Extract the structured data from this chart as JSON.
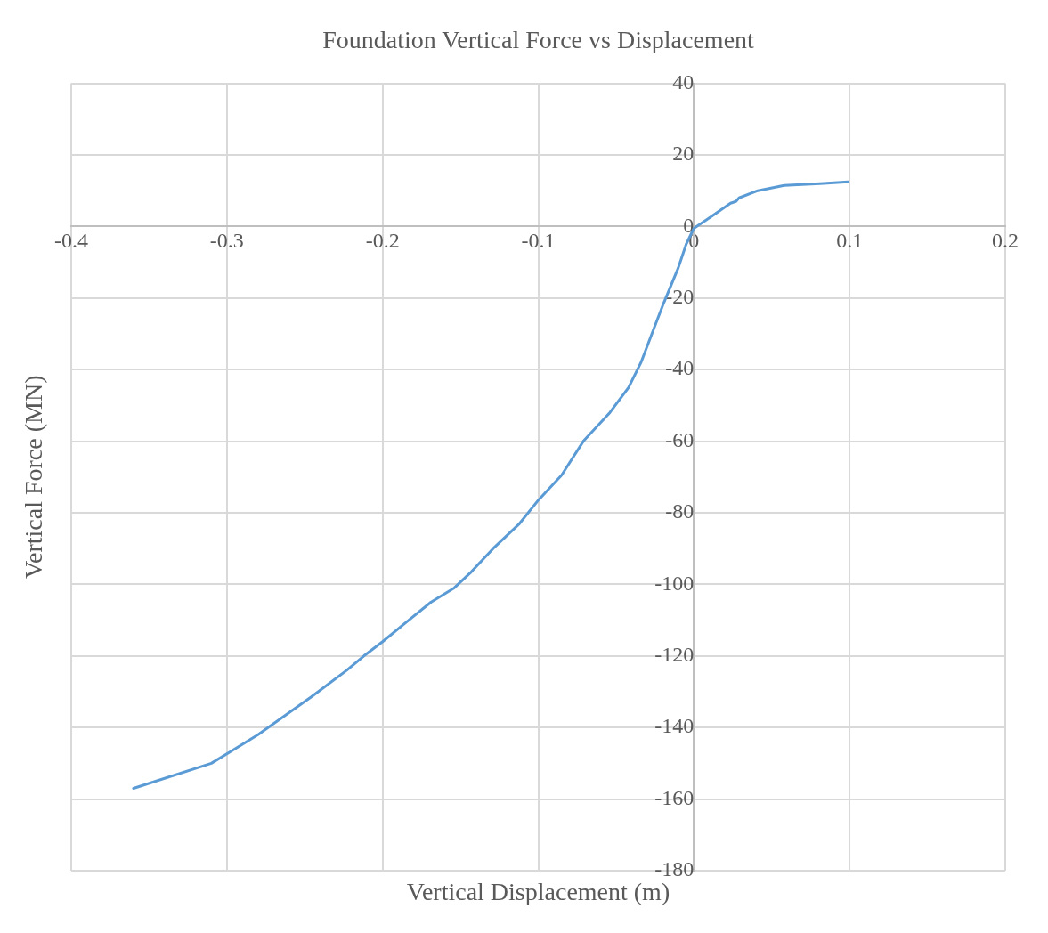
{
  "chart_data": {
    "type": "line",
    "title": "Foundation Vertical Force vs Displacement",
    "xlabel": "Vertical Displacement (m)",
    "ylabel": "Vertical Force (MN)",
    "x": [
      -0.36,
      -0.31,
      -0.28,
      -0.246,
      -0.223,
      -0.212,
      -0.2,
      -0.186,
      -0.169,
      -0.154,
      -0.143,
      -0.129,
      -0.112,
      -0.1,
      -0.085,
      -0.071,
      -0.054,
      -0.042,
      -0.034,
      -0.027,
      -0.0195,
      -0.01,
      -0.005,
      0,
      0.012,
      0.0235,
      0.027,
      0.029,
      0.041,
      0.058,
      0.081,
      0.099
    ],
    "series": [
      {
        "color": "#5b9bd5",
        "values": [
          -157,
          -150,
          -142,
          -131.5,
          -124,
          -120,
          -116,
          -111,
          -105,
          -101,
          -96.5,
          -90,
          -83,
          -76.5,
          -69.5,
          -60,
          -52,
          -45,
          -38,
          -30,
          -21.5,
          -11.5,
          -5,
          -0.5,
          3,
          6.5,
          7,
          8,
          10,
          11.5,
          12,
          12.5
        ]
      }
    ],
    "xlim": [
      -0.4,
      0.2
    ],
    "xticks": [
      -0.4,
      -0.3,
      -0.2,
      -0.1,
      0,
      0.1,
      0.2
    ],
    "ylim": [
      -180,
      40
    ],
    "yticks": [
      -180,
      -160,
      -140,
      -120,
      -100,
      -80,
      -60,
      -40,
      -20,
      0,
      20,
      40
    ],
    "grid": true,
    "legend": false,
    "marker": "none",
    "line_style": "solid"
  }
}
